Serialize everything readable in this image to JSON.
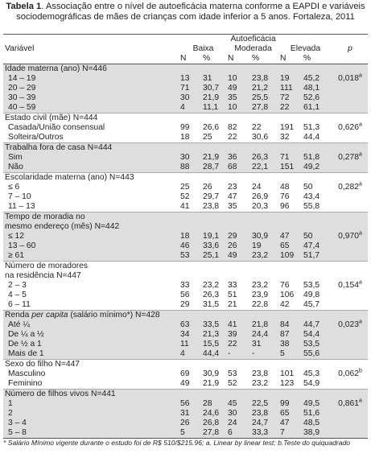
{
  "caption": {
    "label": "Tabela 1",
    "text": ". Associação entre o nível de autoeficácia materna conforme a EAPDI e variáveis sociodemográficas de mães de crianças com idade inferior a 5 anos. Fortaleza, 2011"
  },
  "header": {
    "variable": "Variável",
    "group_title": "Autoeficácia",
    "levels": [
      "Baixa",
      "Moderada",
      "Elevada"
    ],
    "p": "p",
    "sub": [
      "N",
      "%",
      "N",
      "%",
      "N",
      "%"
    ]
  },
  "groups": [
    {
      "heading": "Idade materna (ano) N=446",
      "rows": [
        {
          "label": "14 – 19",
          "cells": [
            "13",
            "31",
            "10",
            "23,8",
            "19",
            "45,2"
          ],
          "p": "0,018",
          "p_note": "a"
        },
        {
          "label": "20 – 29",
          "cells": [
            "71",
            "30,7",
            "49",
            "21,2",
            "111",
            "48,1"
          ]
        },
        {
          "label": "30 – 39",
          "cells": [
            "30",
            "21,9",
            "35",
            "25,5",
            "72",
            "52,6"
          ]
        },
        {
          "label": "40 – 59",
          "cells": [
            "4",
            "11,1",
            "10",
            "27,8",
            "22",
            "61,1"
          ]
        }
      ]
    },
    {
      "heading": "Estado civil (mãe) N=444",
      "rows": [
        {
          "label": "Casada/União consensual",
          "cells": [
            "99",
            "26,6",
            "82",
            "22",
            "191",
            "51,3"
          ],
          "p": "0,626",
          "p_note": "a"
        },
        {
          "label": "Solteira/Outros",
          "cells": [
            "18",
            "25",
            "22",
            "30,6",
            "32",
            "44,4"
          ]
        }
      ]
    },
    {
      "heading": "Trabalha fora de casa N=444",
      "rows": [
        {
          "label": "Sim",
          "cells": [
            "30",
            "21,9",
            "36",
            "26,3",
            "71",
            "51,8"
          ],
          "p": "0,278",
          "p_note": "a"
        },
        {
          "label": "Não",
          "cells": [
            "88",
            "28,7",
            "68",
            "22,1",
            "151",
            "49,2"
          ]
        }
      ]
    },
    {
      "heading": "Escolaridade materna (ano) N=443",
      "rows": [
        {
          "label": "≤ 6",
          "cells": [
            "25",
            "26",
            "23",
            "24",
            "48",
            "50"
          ],
          "p": "0,282",
          "p_note": "a"
        },
        {
          "label": "7 – 10",
          "cells": [
            "52",
            "29,7",
            "47",
            "26,9",
            "76",
            "43,4"
          ]
        },
        {
          "label": "11 – 13",
          "cells": [
            "41",
            "23,8",
            "35",
            "20,3",
            "96",
            "55,8"
          ]
        }
      ]
    },
    {
      "heading": [
        "Tempo de moradia no",
        "mesmo endereço (mês) N=442"
      ],
      "rows": [
        {
          "label": "≤ 12",
          "cells": [
            "18",
            "19,1",
            "29",
            "30,9",
            "47",
            "50"
          ],
          "p": "0,970",
          "p_note": "a"
        },
        {
          "label": "13 – 60",
          "cells": [
            "46",
            "33,6",
            "26",
            "19",
            "65",
            "47,4"
          ]
        },
        {
          "label": "≥ 61",
          "cells": [
            "53",
            "25,1",
            "49",
            "23,2",
            "109",
            "51,7"
          ]
        }
      ]
    },
    {
      "heading": [
        "Número de moradores",
        "na residência N=447"
      ],
      "rows": [
        {
          "label": "2 – 3",
          "cells": [
            "33",
            "23,2",
            "33",
            "23,2",
            "76",
            "53,5"
          ],
          "p": "0,154",
          "p_note": "a"
        },
        {
          "label": "4 – 5",
          "cells": [
            "56",
            "26,3",
            "51",
            "23,9",
            "106",
            "49,8"
          ]
        },
        {
          "label": "6 – 11",
          "cells": [
            "29",
            "31,5",
            "21",
            "22,8",
            "42",
            "45,7"
          ]
        }
      ]
    },
    {
      "heading": {
        "pre": "Renda ",
        "italic": "per capita",
        "post": " (salário mínimo*) N=428"
      },
      "rows": [
        {
          "label": "Até ¼",
          "cells": [
            "63",
            "33,5",
            "41",
            "21,8",
            "84",
            "44,7"
          ],
          "p": "0,023",
          "p_note": "a"
        },
        {
          "label": "De ¼ a ½",
          "cells": [
            "34",
            "21,3",
            "39",
            "24,4",
            "87",
            "54,4"
          ]
        },
        {
          "label": "De ½ a 1",
          "cells": [
            "11",
            "15,5",
            "22",
            "31",
            "38",
            "53,5"
          ]
        },
        {
          "label": "Mais de 1",
          "cells": [
            "4",
            "44,4",
            "-",
            "-",
            "5",
            "55,6"
          ]
        }
      ]
    },
    {
      "heading": "Sexo do filho N=447",
      "rows": [
        {
          "label": "Masculino",
          "cells": [
            "69",
            "30,9",
            "53",
            "23,8",
            "101",
            "45,3"
          ],
          "p": "0,062",
          "p_note": "b"
        },
        {
          "label": "Feminino",
          "cells": [
            "49",
            "21,9",
            "52",
            "23,2",
            "123",
            "54,9"
          ]
        }
      ]
    },
    {
      "heading": "Número de filhos vivos N=441",
      "rows": [
        {
          "label": "1",
          "cells": [
            "56",
            "28",
            "45",
            "22,5",
            "99",
            "49,5"
          ],
          "p": "0,861",
          "p_note": "a"
        },
        {
          "label": "2",
          "cells": [
            "31",
            "24,6",
            "30",
            "23,8",
            "65",
            "51,6"
          ]
        },
        {
          "label": "3 – 4",
          "cells": [
            "26",
            "26,8",
            "24",
            "24,7",
            "47",
            "48,5"
          ]
        },
        {
          "label": "5 – 8",
          "cells": [
            "5",
            "27,8",
            "6",
            "33,3",
            "7",
            "38,9"
          ]
        }
      ]
    }
  ],
  "footnote": "* Salário Mínimo vigente durante o estudo foi de R$ 510/$215.96; a. Linear by linear test; b.Teste do quiquadrado"
}
